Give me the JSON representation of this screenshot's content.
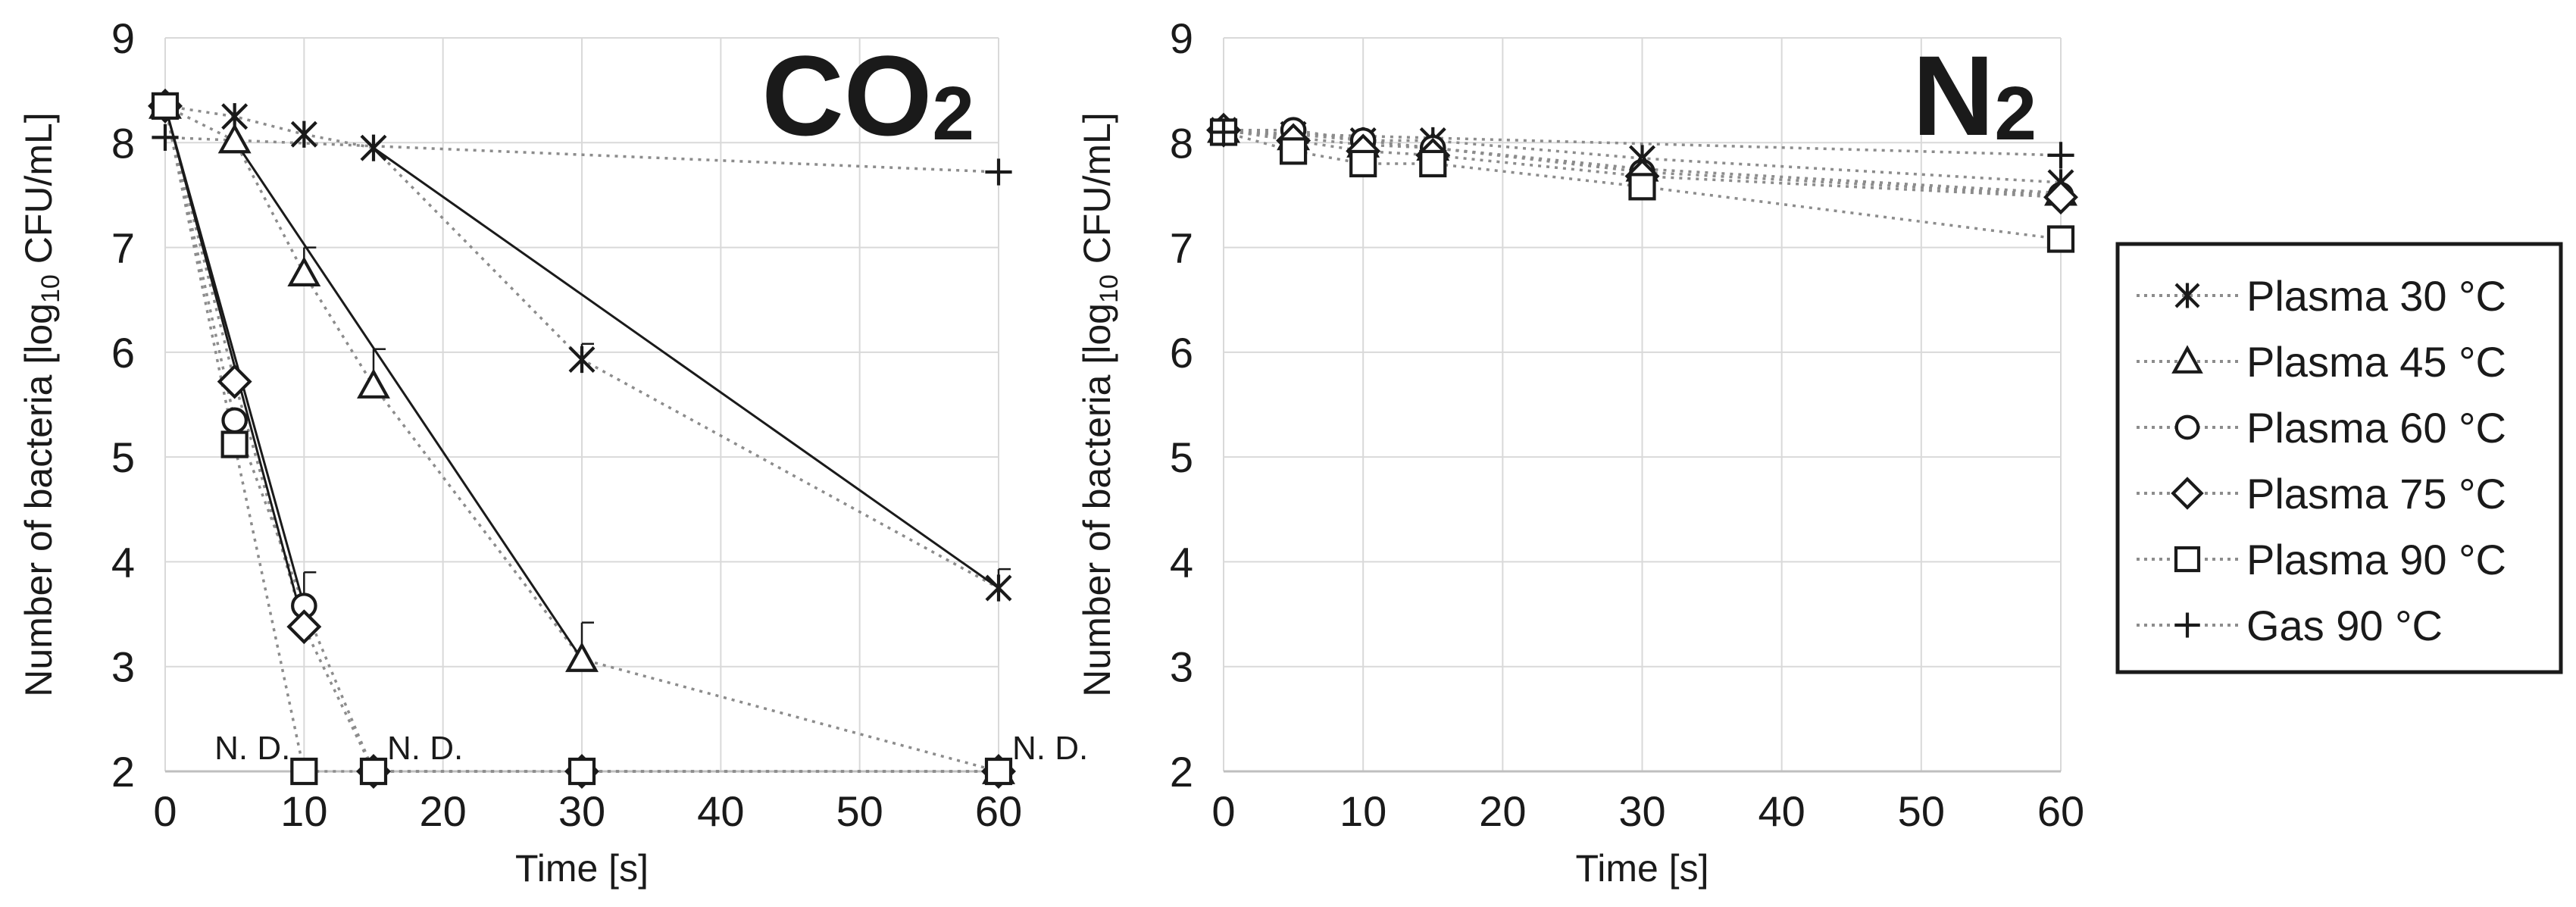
{
  "chart_data": [
    {
      "type": "line",
      "title": "CO",
      "title_subscript": "2",
      "xlabel": "Time [s]",
      "ylabel": "Number of  bacteria [log10 CFU/mL]",
      "ylabel_parts": [
        "Number of  bacteria [log",
        "10",
        " CFU/mL]"
      ],
      "xlim": [
        0,
        60
      ],
      "ylim": [
        2,
        9
      ],
      "xticks": [
        0,
        10,
        20,
        30,
        40,
        50,
        60
      ],
      "yticks": [
        2,
        3,
        4,
        5,
        6,
        7,
        8,
        9
      ],
      "grid": true,
      "x": [
        0,
        5,
        10,
        15,
        30,
        60
      ],
      "series": [
        {
          "name": "Plasma 30 °C",
          "marker": "asterisk",
          "x": [
            0,
            5,
            10,
            15,
            30,
            60
          ],
          "values": [
            8.35,
            8.25,
            8.08,
            7.95,
            5.93,
            3.75
          ],
          "errors": [
            0,
            0,
            0,
            0,
            0.15,
            0.18
          ],
          "fit_line": [
            [
              15,
              7.95
            ],
            [
              60,
              3.75
            ]
          ]
        },
        {
          "name": "Plasma 45 °C",
          "marker": "triangle",
          "x": [
            0,
            5,
            10,
            15,
            30,
            60
          ],
          "values": [
            8.35,
            8.02,
            6.75,
            5.68,
            3.07,
            2.0
          ],
          "errors": [
            0,
            0,
            0.25,
            0.35,
            0.35,
            0
          ],
          "fit_line": [
            [
              5,
              8.02
            ],
            [
              30,
              3.07
            ]
          ]
        },
        {
          "name": "Plasma 60 °C",
          "marker": "circle",
          "x": [
            0,
            5,
            10,
            15,
            30,
            60
          ],
          "values": [
            8.35,
            5.35,
            3.58,
            2.0,
            2.0,
            2.0
          ],
          "errors": [
            0,
            0,
            0.32,
            0,
            0,
            0
          ],
          "fit_line": [
            [
              0,
              8.35
            ],
            [
              10,
              3.58
            ]
          ]
        },
        {
          "name": "Plasma 75 °C",
          "marker": "diamond",
          "x": [
            0,
            5,
            10,
            15,
            30,
            60
          ],
          "values": [
            8.35,
            5.72,
            3.38,
            2.0,
            2.0,
            2.0
          ],
          "errors": [
            0,
            0,
            0,
            0,
            0,
            0
          ],
          "fit_line": [
            [
              0,
              8.35
            ],
            [
              10,
              3.38
            ]
          ]
        },
        {
          "name": "Plasma 90 °C",
          "marker": "square",
          "x": [
            0,
            5,
            10,
            15,
            30,
            60
          ],
          "values": [
            8.35,
            5.12,
            2.0,
            2.0,
            2.0,
            2.0
          ],
          "errors": [
            0,
            0,
            0,
            0,
            0,
            0
          ],
          "fit_line": null
        },
        {
          "name": "Gas 90 °C",
          "marker": "plus",
          "x": [
            0,
            60
          ],
          "values": [
            8.05,
            7.72
          ],
          "errors": [
            0,
            0
          ],
          "fit_line": null
        }
      ],
      "annotations": [
        {
          "text": "N. D.",
          "x": 10,
          "y": 2,
          "anchor": "left-of-point"
        },
        {
          "text": "N. D.",
          "x": 15,
          "y": 2,
          "anchor": "right-of-point"
        },
        {
          "text": "N. D.",
          "x": 60,
          "y": 2,
          "anchor": "right-of-point"
        }
      ]
    },
    {
      "type": "line",
      "title": "N",
      "title_subscript": "2",
      "xlabel": "Time [s]",
      "ylabel": "Number of  bacteria [log10 CFU/mL]",
      "ylabel_parts": [
        "Number of  bacteria [log",
        "10",
        " CFU/mL]"
      ],
      "xlim": [
        0,
        60
      ],
      "ylim": [
        2,
        9
      ],
      "xticks": [
        0,
        10,
        20,
        30,
        40,
        50,
        60
      ],
      "yticks": [
        2,
        3,
        4,
        5,
        6,
        7,
        8,
        9
      ],
      "grid": true,
      "x": [
        0,
        5,
        10,
        15,
        30,
        60
      ],
      "series": [
        {
          "name": "Plasma 30 °C",
          "marker": "asterisk",
          "x": [
            0,
            5,
            10,
            15,
            30,
            60
          ],
          "values": [
            8.12,
            8.08,
            8.02,
            8.02,
            7.85,
            7.62
          ],
          "errors": [
            0,
            0,
            0,
            0,
            0,
            0
          ],
          "fit_line": null
        },
        {
          "name": "Plasma 45 °C",
          "marker": "triangle",
          "x": [
            0,
            5,
            10,
            15,
            30,
            60
          ],
          "values": [
            8.12,
            8.05,
            7.98,
            7.95,
            7.75,
            7.52
          ],
          "errors": [
            0,
            0,
            0,
            0,
            0,
            0
          ],
          "fit_line": null
        },
        {
          "name": "Plasma 60 °C",
          "marker": "circle",
          "x": [
            0,
            5,
            10,
            15,
            30,
            60
          ],
          "values": [
            8.12,
            8.12,
            8.02,
            7.95,
            7.72,
            7.5
          ],
          "errors": [
            0,
            0,
            0,
            0,
            0,
            0
          ],
          "fit_line": null
        },
        {
          "name": "Plasma 75 °C",
          "marker": "diamond",
          "x": [
            0,
            5,
            10,
            15,
            30,
            60
          ],
          "values": [
            8.12,
            8.02,
            7.92,
            7.88,
            7.68,
            7.48
          ],
          "errors": [
            0,
            0,
            0,
            0,
            0,
            0
          ],
          "fit_line": null
        },
        {
          "name": "Plasma 90 °C",
          "marker": "square",
          "x": [
            0,
            5,
            10,
            15,
            30,
            60
          ],
          "values": [
            8.1,
            7.92,
            7.8,
            7.8,
            7.58,
            7.08
          ],
          "errors": [
            0,
            0,
            0,
            0,
            0,
            0
          ],
          "fit_line": null
        },
        {
          "name": "Gas 90 °C",
          "marker": "plus",
          "x": [
            0,
            60
          ],
          "values": [
            8.1,
            7.88
          ],
          "errors": [
            0,
            0
          ],
          "fit_line": null
        }
      ],
      "annotations": []
    }
  ],
  "legend": {
    "position": "right",
    "entries": [
      {
        "label": "Plasma 30 °C",
        "marker": "asterisk"
      },
      {
        "label": "Plasma 45 °C",
        "marker": "triangle"
      },
      {
        "label": "Plasma 60 °C",
        "marker": "circle"
      },
      {
        "label": "Plasma 75 °C",
        "marker": "diamond"
      },
      {
        "label": "Plasma 90 °C",
        "marker": "square"
      },
      {
        "label": "Gas 90 °C",
        "marker": "plus"
      }
    ]
  },
  "colors": {
    "grid": "#d9d9d9",
    "axis": "#bfbfbf",
    "marker": "#1a1a1a",
    "dotted": "#8c8c8c",
    "fit": "#1a1a1a",
    "marker_fill": "#ffffff"
  }
}
